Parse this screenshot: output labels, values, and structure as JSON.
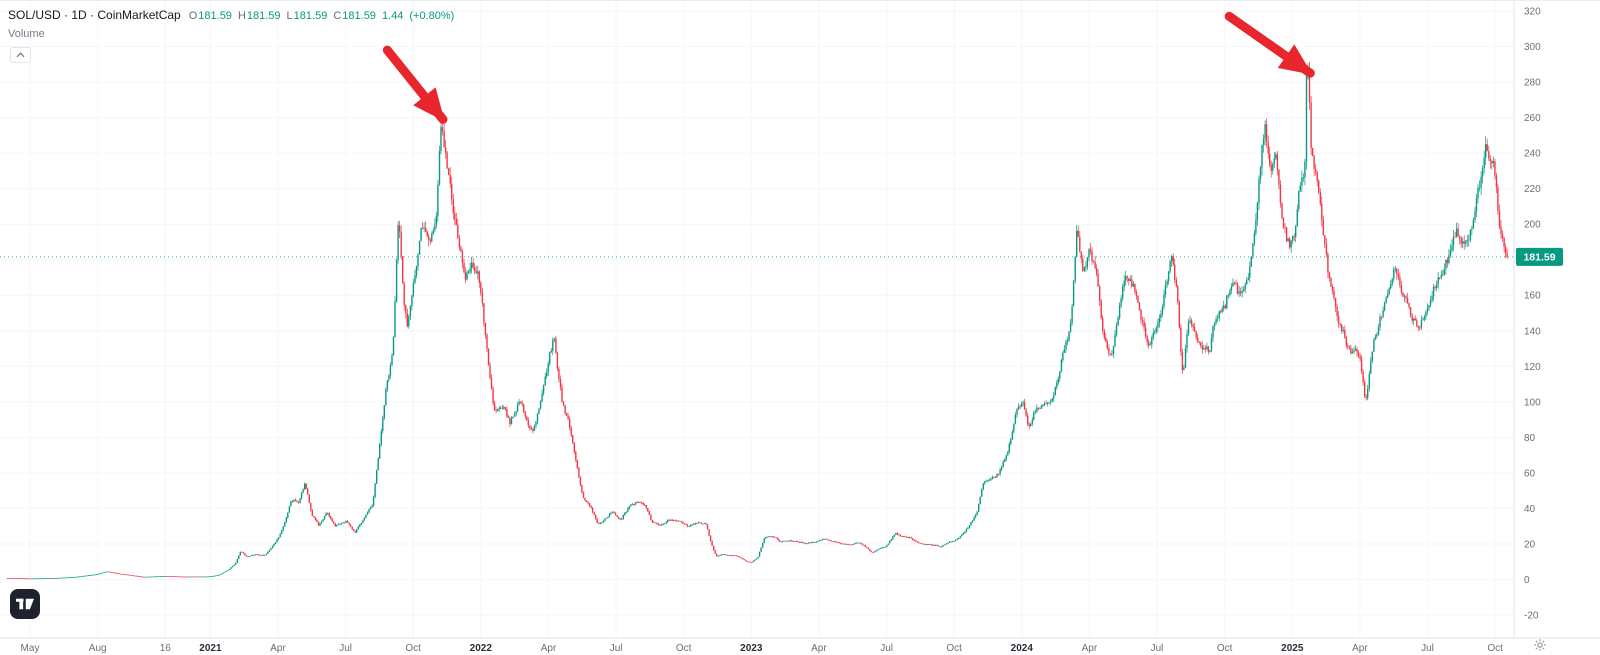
{
  "legend": {
    "title": "SOL/USD · 1D · CoinMarketCap",
    "ohlc": [
      {
        "label": "O",
        "value": "181.59"
      },
      {
        "label": "H",
        "value": "181.59"
      },
      {
        "label": "L",
        "value": "181.59"
      },
      {
        "label": "C",
        "value": "181.59"
      }
    ],
    "change": "1.44",
    "change_pct": "(+0.80%)"
  },
  "volume_pane": {
    "label": "Volume"
  },
  "chart_data": {
    "type": "candlestick",
    "symbol": "SOL/USD",
    "interval": "1D",
    "source": "CoinMarketCap",
    "last_price": 181.59,
    "last_price_label": "181.59",
    "colors": {
      "up": "#089981",
      "down": "#f23645",
      "arrow": "#e8262d",
      "grid": "#f4f6f9",
      "axis_line": "#e0e3eb",
      "axis_text": "#6a6e79",
      "axis_text_year": "#2a2e39",
      "badge_bg": "#089981",
      "badge_text": "#ffffff"
    },
    "y_axis": {
      "min": -20,
      "max": 320,
      "tick_step": 20,
      "ticks": [
        320,
        300,
        280,
        260,
        240,
        220,
        200,
        180,
        160,
        140,
        120,
        100,
        80,
        60,
        40,
        20,
        0,
        -20
      ]
    },
    "x_axis": {
      "t_unit": "months since 2020-04-01",
      "ticks": [
        {
          "label": "May",
          "t": 1,
          "year": false
        },
        {
          "label": "Aug",
          "t": 4,
          "year": false
        },
        {
          "label": "16",
          "t": 7,
          "year": false
        },
        {
          "label": "2021",
          "t": 9,
          "year": true
        },
        {
          "label": "Apr",
          "t": 12,
          "year": false
        },
        {
          "label": "Jul",
          "t": 15,
          "year": false
        },
        {
          "label": "Oct",
          "t": 18,
          "year": false
        },
        {
          "label": "2022",
          "t": 21,
          "year": true
        },
        {
          "label": "Apr",
          "t": 24,
          "year": false
        },
        {
          "label": "Jul",
          "t": 27,
          "year": false
        },
        {
          "label": "Oct",
          "t": 30,
          "year": false
        },
        {
          "label": "2023",
          "t": 33,
          "year": true
        },
        {
          "label": "Apr",
          "t": 36,
          "year": false
        },
        {
          "label": "Jul",
          "t": 39,
          "year": false
        },
        {
          "label": "Oct",
          "t": 42,
          "year": false
        },
        {
          "label": "2024",
          "t": 45,
          "year": true
        },
        {
          "label": "Apr",
          "t": 48,
          "year": false
        },
        {
          "label": "Jul",
          "t": 51,
          "year": false
        },
        {
          "label": "Oct",
          "t": 54,
          "year": false
        },
        {
          "label": "2025",
          "t": 57,
          "year": true
        },
        {
          "label": "Apr",
          "t": 60,
          "year": false
        },
        {
          "label": "Jul",
          "t": 63,
          "year": false
        },
        {
          "label": "Oct",
          "t": 66,
          "year": false
        }
      ]
    },
    "price_path": [
      [
        0,
        0.8
      ],
      [
        1,
        0.6
      ],
      [
        2,
        0.75
      ],
      [
        3,
        1.4
      ],
      [
        4,
        3
      ],
      [
        4.4,
        4.5
      ],
      [
        5,
        3.2
      ],
      [
        5.5,
        2.4
      ],
      [
        6,
        1.5
      ],
      [
        7,
        1.9
      ],
      [
        8,
        1.6
      ],
      [
        9,
        1.7
      ],
      [
        9.4,
        2.6
      ],
      [
        9.8,
        5.5
      ],
      [
        10.1,
        9
      ],
      [
        10.35,
        16
      ],
      [
        10.6,
        13
      ],
      [
        11,
        14
      ],
      [
        11.4,
        13.5
      ],
      [
        11.8,
        19
      ],
      [
        12.2,
        28
      ],
      [
        12.6,
        45
      ],
      [
        12.9,
        43
      ],
      [
        13.2,
        55
      ],
      [
        13.5,
        37
      ],
      [
        13.8,
        30
      ],
      [
        14.2,
        38
      ],
      [
        14.5,
        30
      ],
      [
        15,
        33
      ],
      [
        15.4,
        26
      ],
      [
        15.8,
        34
      ],
      [
        16.2,
        42
      ],
      [
        16.5,
        75
      ],
      [
        16.8,
        108
      ],
      [
        17.1,
        130
      ],
      [
        17.35,
        208
      ],
      [
        17.55,
        160
      ],
      [
        17.75,
        140
      ],
      [
        18,
        162
      ],
      [
        18.4,
        200
      ],
      [
        18.7,
        188
      ],
      [
        19,
        202
      ],
      [
        19.25,
        258
      ],
      [
        19.5,
        237
      ],
      [
        19.75,
        208
      ],
      [
        20,
        192
      ],
      [
        20.3,
        168
      ],
      [
        20.6,
        178
      ],
      [
        20.9,
        172
      ],
      [
        21.2,
        138
      ],
      [
        21.6,
        95
      ],
      [
        22,
        98
      ],
      [
        22.3,
        88
      ],
      [
        22.7,
        100
      ],
      [
        23,
        92
      ],
      [
        23.3,
        82
      ],
      [
        23.7,
        102
      ],
      [
        24,
        122
      ],
      [
        24.25,
        136
      ],
      [
        24.6,
        100
      ],
      [
        24.9,
        88
      ],
      [
        25.2,
        68
      ],
      [
        25.5,
        47
      ],
      [
        25.9,
        40
      ],
      [
        26.2,
        31
      ],
      [
        26.5,
        34
      ],
      [
        26.8,
        38
      ],
      [
        27.2,
        34
      ],
      [
        27.6,
        41
      ],
      [
        28,
        44
      ],
      [
        28.3,
        41
      ],
      [
        28.6,
        32
      ],
      [
        29,
        31
      ],
      [
        29.4,
        34
      ],
      [
        29.8,
        33
      ],
      [
        30.2,
        30
      ],
      [
        30.6,
        32
      ],
      [
        31,
        31
      ],
      [
        31.25,
        19
      ],
      [
        31.45,
        13
      ],
      [
        31.7,
        14
      ],
      [
        32,
        13.5
      ],
      [
        32.4,
        13
      ],
      [
        32.8,
        10
      ],
      [
        33.05,
        10
      ],
      [
        33.3,
        13
      ],
      [
        33.6,
        24
      ],
      [
        34,
        24
      ],
      [
        34.3,
        21
      ],
      [
        34.7,
        22
      ],
      [
        35,
        21
      ],
      [
        35.4,
        20.5
      ],
      [
        35.8,
        21
      ],
      [
        36.2,
        23
      ],
      [
        36.6,
        21.5
      ],
      [
        37,
        20
      ],
      [
        37.4,
        19.5
      ],
      [
        37.8,
        21
      ],
      [
        38.1,
        18
      ],
      [
        38.35,
        15
      ],
      [
        38.6,
        17
      ],
      [
        39,
        19
      ],
      [
        39.4,
        26
      ],
      [
        39.7,
        24
      ],
      [
        40,
        24
      ],
      [
        40.3,
        21
      ],
      [
        40.7,
        20
      ],
      [
        41,
        19.5
      ],
      [
        41.4,
        18.5
      ],
      [
        41.8,
        21
      ],
      [
        42.2,
        23
      ],
      [
        42.6,
        29
      ],
      [
        43,
        38
      ],
      [
        43.3,
        54
      ],
      [
        43.6,
        56
      ],
      [
        44,
        60
      ],
      [
        44.4,
        73
      ],
      [
        44.8,
        98
      ],
      [
        45.05,
        101
      ],
      [
        45.3,
        84
      ],
      [
        45.6,
        96
      ],
      [
        46,
        98
      ],
      [
        46.4,
        104
      ],
      [
        46.8,
        126
      ],
      [
        47.2,
        145
      ],
      [
        47.45,
        200
      ],
      [
        47.7,
        172
      ],
      [
        48,
        188
      ],
      [
        48.3,
        172
      ],
      [
        48.6,
        138
      ],
      [
        49,
        127
      ],
      [
        49.3,
        152
      ],
      [
        49.6,
        172
      ],
      [
        50,
        163
      ],
      [
        50.3,
        148
      ],
      [
        50.6,
        132
      ],
      [
        51,
        142
      ],
      [
        51.3,
        158
      ],
      [
        51.6,
        183
      ],
      [
        51.9,
        162
      ],
      [
        52.15,
        112
      ],
      [
        52.4,
        146
      ],
      [
        52.7,
        138
      ],
      [
        53,
        132
      ],
      [
        53.3,
        128
      ],
      [
        53.6,
        148
      ],
      [
        54,
        152
      ],
      [
        54.3,
        168
      ],
      [
        54.6,
        162
      ],
      [
        55,
        166
      ],
      [
        55.3,
        188
      ],
      [
        55.6,
        238
      ],
      [
        55.8,
        256
      ],
      [
        56.05,
        228
      ],
      [
        56.3,
        240
      ],
      [
        56.6,
        198
      ],
      [
        56.9,
        188
      ],
      [
        57.1,
        192
      ],
      [
        57.3,
        218
      ],
      [
        57.55,
        230
      ],
      [
        57.65,
        293
      ],
      [
        57.85,
        238
      ],
      [
        58.05,
        232
      ],
      [
        58.3,
        200
      ],
      [
        58.6,
        172
      ],
      [
        59,
        146
      ],
      [
        59.3,
        138
      ],
      [
        59.6,
        126
      ],
      [
        60,
        128
      ],
      [
        60.25,
        98
      ],
      [
        60.6,
        134
      ],
      [
        61,
        150
      ],
      [
        61.3,
        168
      ],
      [
        61.6,
        176
      ],
      [
        62,
        158
      ],
      [
        62.3,
        146
      ],
      [
        62.6,
        142
      ],
      [
        63,
        152
      ],
      [
        63.3,
        162
      ],
      [
        63.6,
        172
      ],
      [
        64,
        182
      ],
      [
        64.3,
        196
      ],
      [
        64.6,
        188
      ],
      [
        65,
        202
      ],
      [
        65.3,
        222
      ],
      [
        65.6,
        244
      ],
      [
        65.8,
        238
      ],
      [
        66,
        228
      ],
      [
        66.2,
        198
      ],
      [
        66.4,
        186
      ],
      [
        66.6,
        181.59
      ]
    ],
    "annotations": [
      {
        "type": "arrow",
        "name": "peak-2021-arrow",
        "from": [
          16.85,
          298
        ],
        "to": [
          19.32,
          259
        ]
      },
      {
        "type": "arrow",
        "name": "peak-2025-arrow",
        "from": [
          54.2,
          317
        ],
        "to": [
          57.8,
          285
        ]
      }
    ]
  }
}
